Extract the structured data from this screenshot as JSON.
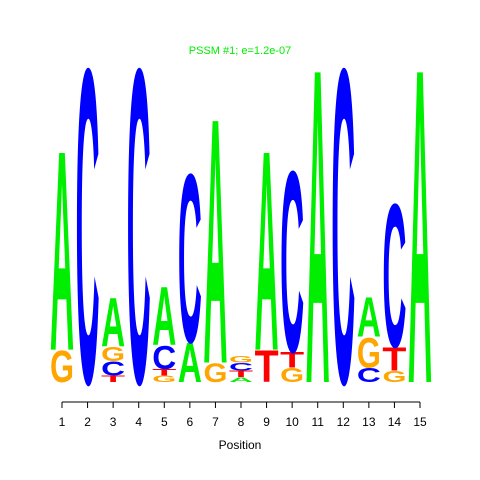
{
  "chart_data": {
    "type": "sequence-logo",
    "title": "PSSM #1; e=1.2e-07",
    "x_label": "Position",
    "categories": [
      "1",
      "2",
      "3",
      "4",
      "5",
      "6",
      "7",
      "8",
      "9",
      "10",
      "11",
      "12",
      "13",
      "14",
      "15"
    ],
    "colors": {
      "A": "#00ee00",
      "C": "#0000ff",
      "G": "#ffa500",
      "T": "#ff0000"
    },
    "stacks": [
      [
        {
          "letter": "G",
          "value": 0.2
        },
        {
          "letter": "A",
          "value": 1.27
        }
      ],
      [
        {
          "letter": "C",
          "value": 2.0
        }
      ],
      [
        {
          "letter": "T",
          "value": 0.04
        },
        {
          "letter": "C",
          "value": 0.09
        },
        {
          "letter": "G",
          "value": 0.09
        },
        {
          "letter": "A",
          "value": 0.31
        }
      ],
      [
        {
          "letter": "C",
          "value": 2.0
        }
      ],
      [
        {
          "letter": "G",
          "value": 0.04
        },
        {
          "letter": "T",
          "value": 0.04
        },
        {
          "letter": "C",
          "value": 0.15
        },
        {
          "letter": "A",
          "value": 0.37
        }
      ],
      [
        {
          "letter": "A",
          "value": 0.25
        },
        {
          "letter": "C",
          "value": 1.07
        }
      ],
      [
        {
          "letter": "G",
          "value": 0.12
        },
        {
          "letter": "A",
          "value": 1.56
        }
      ],
      [
        {
          "letter": "A",
          "value": 0.03
        },
        {
          "letter": "T",
          "value": 0.04
        },
        {
          "letter": "C",
          "value": 0.05
        },
        {
          "letter": "G",
          "value": 0.04
        }
      ],
      [
        {
          "letter": "T",
          "value": 0.2
        },
        {
          "letter": "A",
          "value": 1.27
        }
      ],
      [
        {
          "letter": "G",
          "value": 0.09
        },
        {
          "letter": "T",
          "value": 0.1
        },
        {
          "letter": "C",
          "value": 1.15
        }
      ],
      [
        {
          "letter": "A",
          "value": 2.0
        }
      ],
      [
        {
          "letter": "C",
          "value": 2.0
        }
      ],
      [
        {
          "letter": "C",
          "value": 0.09
        },
        {
          "letter": "G",
          "value": 0.19
        },
        {
          "letter": "A",
          "value": 0.25
        }
      ],
      [
        {
          "letter": "G",
          "value": 0.07
        },
        {
          "letter": "T",
          "value": 0.15
        },
        {
          "letter": "C",
          "value": 0.91
        }
      ],
      [
        {
          "letter": "A",
          "value": 2.0
        }
      ]
    ]
  }
}
